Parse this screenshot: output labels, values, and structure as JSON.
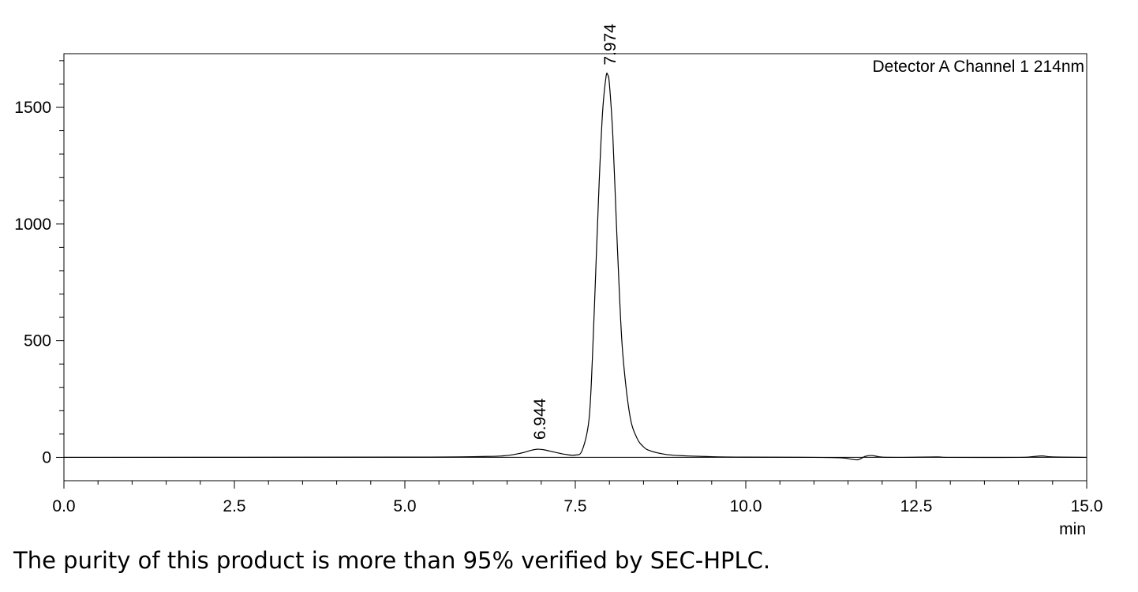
{
  "chart_data": {
    "type": "line",
    "legend_text": "Detector A Channel 1 214nm",
    "legend_position": "top-right",
    "xlabel": "min",
    "ylabel": "",
    "xlim": [
      0.0,
      15.0
    ],
    "ylim": [
      -100,
      1730
    ],
    "x_ticks": [
      "0.0",
      "2.5",
      "5.0",
      "7.5",
      "10.0",
      "12.5",
      "15.0"
    ],
    "y_ticks": [
      "0",
      "500",
      "1000",
      "1500"
    ],
    "peaks": [
      {
        "label": "6.944",
        "x": 6.944,
        "y": 35
      },
      {
        "label": "7.974",
        "x": 7.974,
        "y": 1640
      }
    ],
    "series": [
      {
        "x": [
          0.0,
          5.0,
          6.2,
          6.5,
          6.7,
          6.85,
          6.944,
          7.05,
          7.2,
          7.35,
          7.5,
          7.6,
          7.7,
          7.75,
          7.8,
          7.85,
          7.9,
          7.95,
          7.974,
          8.0,
          8.05,
          8.1,
          8.15,
          8.2,
          8.3,
          8.4,
          8.5,
          8.6,
          8.8,
          9.0,
          9.5,
          10.0,
          11.0,
          11.4,
          11.55,
          11.65,
          11.75,
          11.85,
          12.0,
          12.3,
          12.8,
          13.0,
          14.0,
          14.2,
          14.35,
          14.5,
          15.0
        ],
        "y": [
          0,
          1,
          4,
          8,
          18,
          30,
          35,
          32,
          22,
          13,
          10,
          30,
          160,
          420,
          800,
          1180,
          1480,
          1630,
          1640,
          1600,
          1380,
          1020,
          680,
          430,
          180,
          85,
          45,
          28,
          14,
          8,
          3,
          1,
          0,
          -2,
          -8,
          -10,
          4,
          8,
          1,
          0,
          2,
          0,
          0,
          3,
          6,
          2,
          0
        ]
      }
    ]
  },
  "caption": "The purity of this product is more than 95% verified by SEC-HPLC."
}
